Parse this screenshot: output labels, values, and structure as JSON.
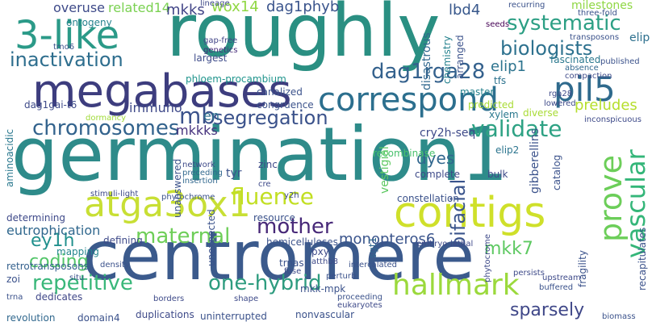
{
  "words": [
    {
      "text": "germination1",
      "color": "#2e8b8a"
    },
    {
      "text": "centromere",
      "color": "#3b5a8c"
    },
    {
      "text": "roughly",
      "color": "#2a8f82"
    },
    {
      "text": "megabases",
      "color": "#3d3d7e"
    },
    {
      "text": "contigs",
      "color": "#cfe02a"
    },
    {
      "text": "3-like",
      "color": "#2b9a88"
    },
    {
      "text": "atga3ox1",
      "color": "#c8df34"
    },
    {
      "text": "correspond",
      "color": "#2c6f8e"
    },
    {
      "text": "pil5",
      "color": "#2f6a8d"
    },
    {
      "text": "hallmark",
      "color": "#9bd93c"
    },
    {
      "text": "prove",
      "color": "#6cce59"
    },
    {
      "text": "validate",
      "color": "#2ea284"
    },
    {
      "text": "chromosomes",
      "color": "#33638d"
    },
    {
      "text": "inactivation",
      "color": "#2e6e8e"
    },
    {
      "text": "biologists",
      "color": "#2d718e"
    },
    {
      "text": "systematic",
      "color": "#2c9f84"
    },
    {
      "text": "dag1rga28",
      "color": "#34618d"
    },
    {
      "text": "segregation",
      "color": "#3b528b"
    },
    {
      "text": "fluence",
      "color": "#c2df23"
    },
    {
      "text": "repetitive",
      "color": "#39b77a"
    },
    {
      "text": "one-hybrid",
      "color": "#2e9c7f"
    },
    {
      "text": "mother",
      "color": "#472878"
    },
    {
      "text": "maternal",
      "color": "#6ece58"
    },
    {
      "text": "coding",
      "color": "#52c569"
    },
    {
      "text": "vascular",
      "color": "#34b679"
    },
    {
      "text": "sparsely",
      "color": "#3f4788"
    },
    {
      "text": "ey1h",
      "color": "#21908d"
    },
    {
      "text": "mb",
      "color": "#3b528b"
    },
    {
      "text": "wox14",
      "color": "#90d743"
    },
    {
      "text": "dag1phyb",
      "color": "#3a548c"
    },
    {
      "text": "overuse",
      "color": "#3e4a89"
    },
    {
      "text": "related14",
      "color": "#7ad151"
    },
    {
      "text": "mkks",
      "color": "#414487"
    },
    {
      "text": "lbd4",
      "color": "#38588c"
    },
    {
      "text": "milestones",
      "color": "#8fd744"
    },
    {
      "text": "mkk7",
      "color": "#5ec962"
    },
    {
      "text": "bifacial",
      "color": "#3a548c"
    },
    {
      "text": "monopteros6",
      "color": "#3a548c"
    },
    {
      "text": "preludes",
      "color": "#b5de2b"
    },
    {
      "text": "elip1",
      "color": "#2c738e"
    },
    {
      "text": "dyes",
      "color": "#31678e"
    },
    {
      "text": "en",
      "color": "#2d708e"
    },
    {
      "text": "mkkks",
      "color": "#46327e"
    },
    {
      "text": "immuno",
      "color": "#3e4989"
    },
    {
      "text": "ontogeny",
      "color": "#26828e"
    },
    {
      "text": "tmo6",
      "color": "#3b528b"
    },
    {
      "text": "largest",
      "color": "#3e4c8a"
    },
    {
      "text": "aminoacidic",
      "color": "#2a788e"
    },
    {
      "text": "eutrophication",
      "color": "#31688e"
    },
    {
      "text": "retrotransposons",
      "color": "#34618d"
    },
    {
      "text": "determining",
      "color": "#3e4989"
    },
    {
      "text": "revolution",
      "color": "#31688e"
    },
    {
      "text": "dedicates",
      "color": "#3f4788"
    },
    {
      "text": "mapping",
      "color": "#24868e"
    },
    {
      "text": "dag1gai-t6",
      "color": "#3e4a89"
    },
    {
      "text": "dormancy",
      "color": "#a0da39"
    },
    {
      "text": "canalized",
      "color": "#3b528b"
    },
    {
      "text": "congruence",
      "color": "#3b528b"
    },
    {
      "text": "cry2h-seq",
      "color": "#3e4a89"
    },
    {
      "text": "elip2",
      "color": "#2b748e"
    },
    {
      "text": "recombinase",
      "color": "#4ac16d"
    },
    {
      "text": "phloem-procambium",
      "color": "#1f948c"
    },
    {
      "text": "lineage",
      "color": "#3e4a89"
    },
    {
      "text": "gap-free",
      "color": "#414487"
    },
    {
      "text": "genetics",
      "color": "#472d7b"
    },
    {
      "text": "disastrous",
      "color": "#31688e"
    },
    {
      "text": "chemistry",
      "color": "#26828e"
    },
    {
      "text": "arranged",
      "color": "#3b528b"
    },
    {
      "text": "fascinated",
      "color": "#2a788e"
    },
    {
      "text": "published",
      "color": "#3b528b"
    },
    {
      "text": "absence",
      "color": "#31688e"
    },
    {
      "text": "compaction",
      "color": "#3e4a89"
    },
    {
      "text": "seeds",
      "color": "#440154"
    },
    {
      "text": "recurring",
      "color": "#3b528b"
    },
    {
      "text": "three-fold",
      "color": "#3b528b"
    },
    {
      "text": "transposons",
      "color": "#3b528b"
    },
    {
      "text": "elip",
      "color": "#2d708e"
    },
    {
      "text": "predicted",
      "color": "#a8db34"
    },
    {
      "text": "master",
      "color": "#26828e"
    },
    {
      "text": "xylem",
      "color": "#2a788e"
    },
    {
      "text": "diverse",
      "color": "#a8db34"
    },
    {
      "text": "inconspicuous",
      "color": "#3e4a89"
    },
    {
      "text": "tfs",
      "color": "#2c728e"
    },
    {
      "text": "rga28",
      "color": "#3e4a89"
    },
    {
      "text": "lowered",
      "color": "#3e4a89"
    },
    {
      "text": "unanswered",
      "color": "#3b528b"
    },
    {
      "text": "tyr",
      "color": "#3b528b"
    },
    {
      "text": "zinc",
      "color": "#3e4a89"
    },
    {
      "text": "network",
      "color": "#3e4a89"
    },
    {
      "text": "preceding",
      "color": "#31688e"
    },
    {
      "text": "insertion",
      "color": "#31688e"
    },
    {
      "text": "stimuli-light",
      "color": "#3e4a89"
    },
    {
      "text": "phytochrome",
      "color": "#3b528b"
    },
    {
      "text": "resource",
      "color": "#3b528b"
    },
    {
      "text": "complete",
      "color": "#3e4a89"
    },
    {
      "text": "constellation",
      "color": "#3b528b"
    },
    {
      "text": "catalog",
      "color": "#3b528b"
    },
    {
      "text": "gibberellins",
      "color": "#3b528b"
    },
    {
      "text": "sgt1",
      "color": "#31688e"
    },
    {
      "text": "vestigial",
      "color": "#5ec962"
    },
    {
      "text": "defining",
      "color": "#3e4a89"
    },
    {
      "text": "hemicelluloses",
      "color": "#3b528b"
    },
    {
      "text": "trnas",
      "color": "#3b528b"
    },
    {
      "text": "pxy",
      "color": "#3e4a89"
    },
    {
      "text": "atthb8",
      "color": "#3e4a89"
    },
    {
      "text": "mkk-mpk",
      "color": "#3b528b"
    },
    {
      "text": "unexpected",
      "color": "#3b528b"
    },
    {
      "text": "duplications",
      "color": "#3e4a89"
    },
    {
      "text": "uninterrupted",
      "color": "#3b528b"
    },
    {
      "text": "nonvascular",
      "color": "#3b528b"
    },
    {
      "text": "proceeding",
      "color": "#3b528b"
    },
    {
      "text": "eukaryotes",
      "color": "#3e4a89"
    },
    {
      "text": "phytocrome",
      "color": "#3e4a89"
    },
    {
      "text": "persists",
      "color": "#3e4a89"
    },
    {
      "text": "upstream",
      "color": "#3e4a89"
    },
    {
      "text": "buffered",
      "color": "#3b528b"
    },
    {
      "text": "fragility",
      "color": "#3b528b"
    },
    {
      "text": "recapitulates",
      "color": "#3b528b"
    },
    {
      "text": "biomass",
      "color": "#3b528b"
    },
    {
      "text": "domain4",
      "color": "#3b528b"
    },
    {
      "text": "borders",
      "color": "#3e4a89"
    },
    {
      "text": "density",
      "color": "#3b528b"
    },
    {
      "text": "shape",
      "color": "#3e4a89"
    },
    {
      "text": "fuse",
      "color": "#3e4a89"
    },
    {
      "text": "perturb",
      "color": "#3b528b"
    },
    {
      "text": "intercalated",
      "color": "#3b528b"
    },
    {
      "text": "embryo-lethal",
      "color": "#3e4a89"
    },
    {
      "text": "zoi",
      "color": "#3e4a89"
    },
    {
      "text": "situ",
      "color": "#3b528b"
    },
    {
      "text": "trna",
      "color": "#3b528b"
    },
    {
      "text": "bulk",
      "color": "#3b528b"
    },
    {
      "text": "cre",
      "color": "#3e4a89"
    },
    {
      "text": "y2h",
      "color": "#3e4a89"
    },
    {
      "text": "cost",
      "color": "#3e4a89"
    },
    {
      "text": "mkks_small",
      "color": "#3e4a89"
    }
  ]
}
